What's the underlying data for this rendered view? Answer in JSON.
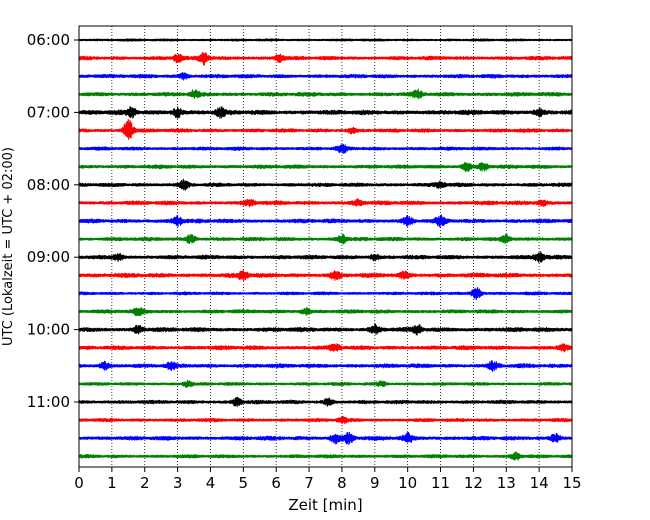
{
  "chart_data": {
    "type": "line",
    "subtype": "helicorder",
    "title": "",
    "xlabel": "Zeit  [min]",
    "ylabel": "UTC (Lokalzeit = UTC + 02:00)",
    "xlim": [
      0,
      15
    ],
    "x_ticks": [
      "0",
      "1",
      "2",
      "3",
      "4",
      "5",
      "6",
      "7",
      "8",
      "9",
      "10",
      "11",
      "12",
      "13",
      "14",
      "15"
    ],
    "y_ticks": [
      {
        "label": "06:00",
        "trace_index": 0
      },
      {
        "label": "07:00",
        "trace_index": 4
      },
      {
        "label": "08:00",
        "trace_index": 8
      },
      {
        "label": "09:00",
        "trace_index": 12
      },
      {
        "label": "10:00",
        "trace_index": 16
      },
      {
        "label": "11:00",
        "trace_index": 20
      }
    ],
    "trace_interval_minutes": 15,
    "trace_start": "06:00",
    "grid": "vertical-dotted",
    "colors": [
      "#000000",
      "#ff0000",
      "#0000ff",
      "#008000"
    ],
    "traces": [
      {
        "start": "06:00",
        "color": "#000000",
        "amplitude": 0.35,
        "events": []
      },
      {
        "start": "06:15",
        "color": "#ff0000",
        "amplitude": 0.55,
        "events": [
          {
            "x": 3.8,
            "peak": 1.8
          },
          {
            "x": 3.0,
            "peak": 1.1
          },
          {
            "x": 6.1,
            "peak": 1.0
          }
        ]
      },
      {
        "start": "06:30",
        "color": "#0000ff",
        "amplitude": 0.55,
        "events": [
          {
            "x": 3.2,
            "peak": 0.9
          }
        ]
      },
      {
        "start": "06:45",
        "color": "#008000",
        "amplitude": 0.6,
        "events": [
          {
            "x": 3.5,
            "peak": 1.0
          },
          {
            "x": 10.3,
            "peak": 1.0
          }
        ]
      },
      {
        "start": "07:00",
        "color": "#000000",
        "amplitude": 0.7,
        "events": [
          {
            "x": 1.6,
            "peak": 1.3
          },
          {
            "x": 3.0,
            "peak": 1.4
          },
          {
            "x": 4.3,
            "peak": 1.2
          },
          {
            "x": 14.0,
            "peak": 1.1
          }
        ]
      },
      {
        "start": "07:15",
        "color": "#ff0000",
        "amplitude": 0.55,
        "events": [
          {
            "x": 1.5,
            "peak": 3.2
          },
          {
            "x": 8.3,
            "peak": 0.8
          }
        ]
      },
      {
        "start": "07:30",
        "color": "#0000ff",
        "amplitude": 0.5,
        "events": [
          {
            "x": 8.0,
            "peak": 1.3
          }
        ]
      },
      {
        "start": "07:45",
        "color": "#008000",
        "amplitude": 0.55,
        "events": [
          {
            "x": 11.8,
            "peak": 1.2
          },
          {
            "x": 12.3,
            "peak": 1.1
          }
        ]
      },
      {
        "start": "08:00",
        "color": "#000000",
        "amplitude": 0.55,
        "events": [
          {
            "x": 3.2,
            "peak": 1.3
          },
          {
            "x": 11.0,
            "peak": 0.9
          }
        ]
      },
      {
        "start": "08:15",
        "color": "#ff0000",
        "amplitude": 0.6,
        "events": [
          {
            "x": 5.2,
            "peak": 0.9
          },
          {
            "x": 8.5,
            "peak": 0.9
          },
          {
            "x": 14.1,
            "peak": 0.8
          }
        ]
      },
      {
        "start": "08:30",
        "color": "#0000ff",
        "amplitude": 0.6,
        "events": [
          {
            "x": 3.0,
            "peak": 1.4
          },
          {
            "x": 10.0,
            "peak": 1.3
          },
          {
            "x": 11.0,
            "peak": 1.3
          }
        ]
      },
      {
        "start": "08:45",
        "color": "#008000",
        "amplitude": 0.55,
        "events": [
          {
            "x": 3.4,
            "peak": 1.2
          },
          {
            "x": 8.0,
            "peak": 1.3
          },
          {
            "x": 13.0,
            "peak": 1.0
          }
        ]
      },
      {
        "start": "09:00",
        "color": "#000000",
        "amplitude": 0.6,
        "events": [
          {
            "x": 1.2,
            "peak": 1.0
          },
          {
            "x": 9.0,
            "peak": 0.9
          },
          {
            "x": 14.0,
            "peak": 1.5
          }
        ]
      },
      {
        "start": "09:15",
        "color": "#ff0000",
        "amplitude": 0.65,
        "events": [
          {
            "x": 5.0,
            "peak": 1.3
          },
          {
            "x": 7.8,
            "peak": 1.1
          },
          {
            "x": 9.9,
            "peak": 0.9
          }
        ]
      },
      {
        "start": "09:30",
        "color": "#0000ff",
        "amplitude": 0.45,
        "events": [
          {
            "x": 12.1,
            "peak": 1.8
          }
        ]
      },
      {
        "start": "09:45",
        "color": "#008000",
        "amplitude": 0.55,
        "events": [
          {
            "x": 1.8,
            "peak": 1.0
          },
          {
            "x": 6.9,
            "peak": 0.9
          }
        ]
      },
      {
        "start": "10:00",
        "color": "#000000",
        "amplitude": 0.65,
        "events": [
          {
            "x": 9.0,
            "peak": 1.2
          },
          {
            "x": 10.3,
            "peak": 1.2
          },
          {
            "x": 1.8,
            "peak": 1.0
          }
        ]
      },
      {
        "start": "10:15",
        "color": "#ff0000",
        "amplitude": 0.6,
        "events": [
          {
            "x": 7.8,
            "peak": 1.1
          },
          {
            "x": 14.7,
            "peak": 0.9
          }
        ]
      },
      {
        "start": "10:30",
        "color": "#0000ff",
        "amplitude": 0.6,
        "events": [
          {
            "x": 0.8,
            "peak": 1.1
          },
          {
            "x": 12.6,
            "peak": 1.2
          },
          {
            "x": 2.8,
            "peak": 0.9
          }
        ]
      },
      {
        "start": "10:45",
        "color": "#008000",
        "amplitude": 0.45,
        "events": [
          {
            "x": 3.3,
            "peak": 0.8
          },
          {
            "x": 9.2,
            "peak": 0.7
          }
        ]
      },
      {
        "start": "11:00",
        "color": "#000000",
        "amplitude": 0.55,
        "events": [
          {
            "x": 4.8,
            "peak": 1.1
          },
          {
            "x": 7.6,
            "peak": 1.0
          }
        ]
      },
      {
        "start": "11:15",
        "color": "#ff0000",
        "amplitude": 0.5,
        "events": [
          {
            "x": 8.0,
            "peak": 0.9
          }
        ]
      },
      {
        "start": "11:30",
        "color": "#0000ff",
        "amplitude": 0.6,
        "events": [
          {
            "x": 7.8,
            "peak": 1.4
          },
          {
            "x": 8.2,
            "peak": 1.5
          },
          {
            "x": 10.0,
            "peak": 1.4
          },
          {
            "x": 14.5,
            "peak": 1.3
          }
        ]
      },
      {
        "start": "11:45",
        "color": "#008000",
        "amplitude": 0.5,
        "events": [
          {
            "x": 13.3,
            "peak": 1.1
          }
        ]
      }
    ]
  }
}
